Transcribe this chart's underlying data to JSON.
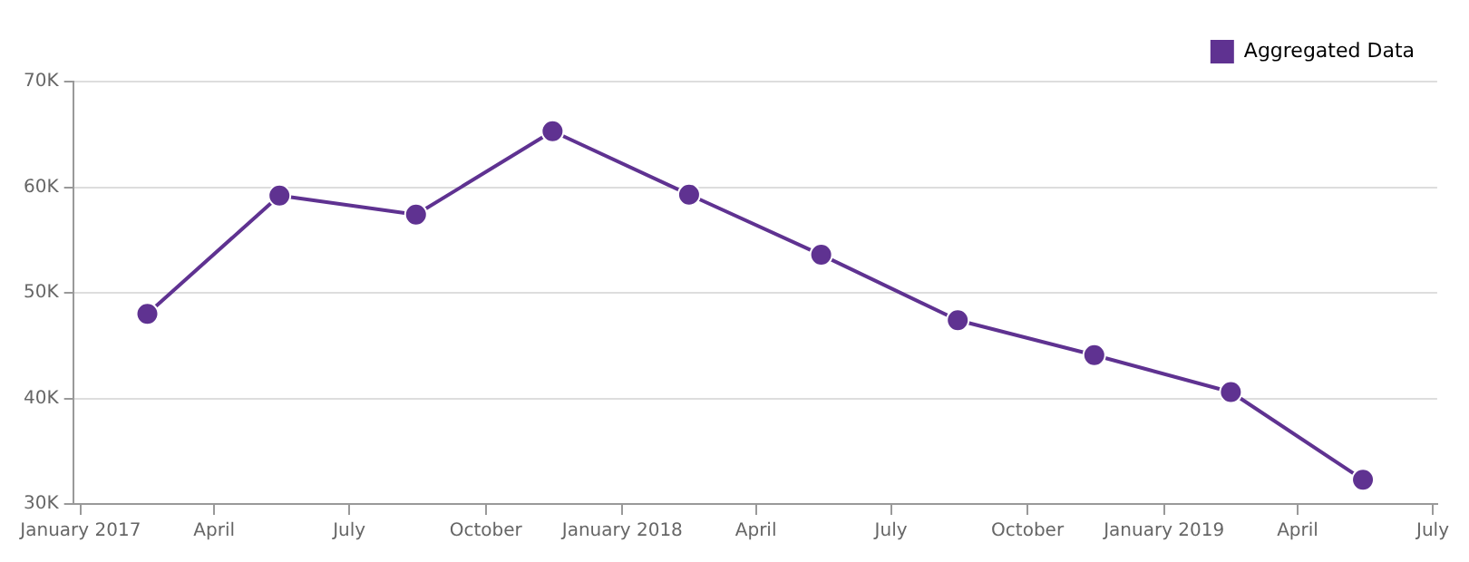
{
  "chart_data": {
    "type": "line",
    "legend": "top right",
    "grid": "y",
    "marker": "circle",
    "line_style": "solid",
    "x": [
      "2017-02-15",
      "2017-05-15",
      "2017-08-15",
      "2017-11-15",
      "2018-02-15",
      "2018-05-15",
      "2018-08-15",
      "2018-11-15",
      "2019-02-15",
      "2019-05-15"
    ],
    "series": [
      {
        "name": "Aggregated Data",
        "color": "#5f3291",
        "values": [
          48000,
          59200,
          57400,
          65300,
          59300,
          53600,
          47400,
          44100,
          40600,
          32300
        ]
      }
    ],
    "xlim": [
      "2016-12-27",
      "2019-07-04"
    ],
    "xticks": [
      {
        "value": "2017-01-01",
        "label": "January 2017"
      },
      {
        "value": "2017-04-01",
        "label": "April"
      },
      {
        "value": "2017-07-01",
        "label": "July"
      },
      {
        "value": "2017-10-01",
        "label": "October"
      },
      {
        "value": "2018-01-01",
        "label": "January 2018"
      },
      {
        "value": "2018-04-01",
        "label": "April"
      },
      {
        "value": "2018-07-01",
        "label": "July"
      },
      {
        "value": "2018-10-01",
        "label": "October"
      },
      {
        "value": "2019-01-01",
        "label": "January 2019"
      },
      {
        "value": "2019-04-01",
        "label": "April"
      },
      {
        "value": "2019-07-01",
        "label": "July"
      }
    ],
    "ylim": [
      30000,
      70000
    ],
    "yticks": [
      {
        "value": 30000,
        "label": "30K"
      },
      {
        "value": 40000,
        "label": "40K"
      },
      {
        "value": 50000,
        "label": "50K"
      },
      {
        "value": 60000,
        "label": "60K"
      },
      {
        "value": 70000,
        "label": "70K"
      }
    ]
  }
}
